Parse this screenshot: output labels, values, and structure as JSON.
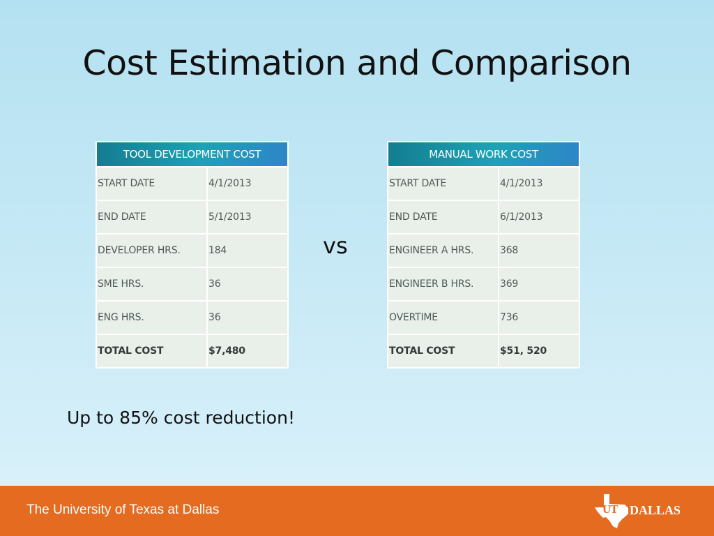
{
  "slide": {
    "title": "Cost Estimation and Comparison",
    "vs_text": "vs",
    "tagline": "Up to 85% cost reduction!"
  },
  "tool_table": {
    "header": "TOOL DEVELOPMENT COST",
    "rows": [
      {
        "label": "START DATE",
        "value": "4/1/2013"
      },
      {
        "label": "END DATE",
        "value": "5/1/2013"
      },
      {
        "label": "DEVELOPER HRS.",
        "value": "184"
      },
      {
        "label": "SME HRS.",
        "value": "36"
      },
      {
        "label": "ENG HRS.",
        "value": "36"
      },
      {
        "label": "TOTAL COST",
        "value": "$7,480"
      }
    ]
  },
  "manual_table": {
    "header": "MANUAL WORK COST",
    "rows": [
      {
        "label": "START DATE",
        "value": "4/1/2013"
      },
      {
        "label": "END DATE",
        "value": "6/1/2013"
      },
      {
        "label": "ENGINEER A HRS.",
        "value": "368"
      },
      {
        "label": "ENGINEER B HRS.",
        "value": "369"
      },
      {
        "label": "OVERTIME",
        "value": "736"
      },
      {
        "label": "TOTAL COST",
        "value": "$51, 520"
      }
    ]
  },
  "footer": {
    "university": "The University of Texas at Dallas",
    "logo_ut": "UT",
    "logo_dallas": "DALLAS",
    "icon": "texas-map-logo-icon",
    "color": "#e46b1f"
  },
  "colors": {
    "background_top": "#b4e1f1",
    "background_bottom": "#dcf2fb",
    "table_header": "#1ea2b5",
    "table_cell": "#e9efe9"
  }
}
